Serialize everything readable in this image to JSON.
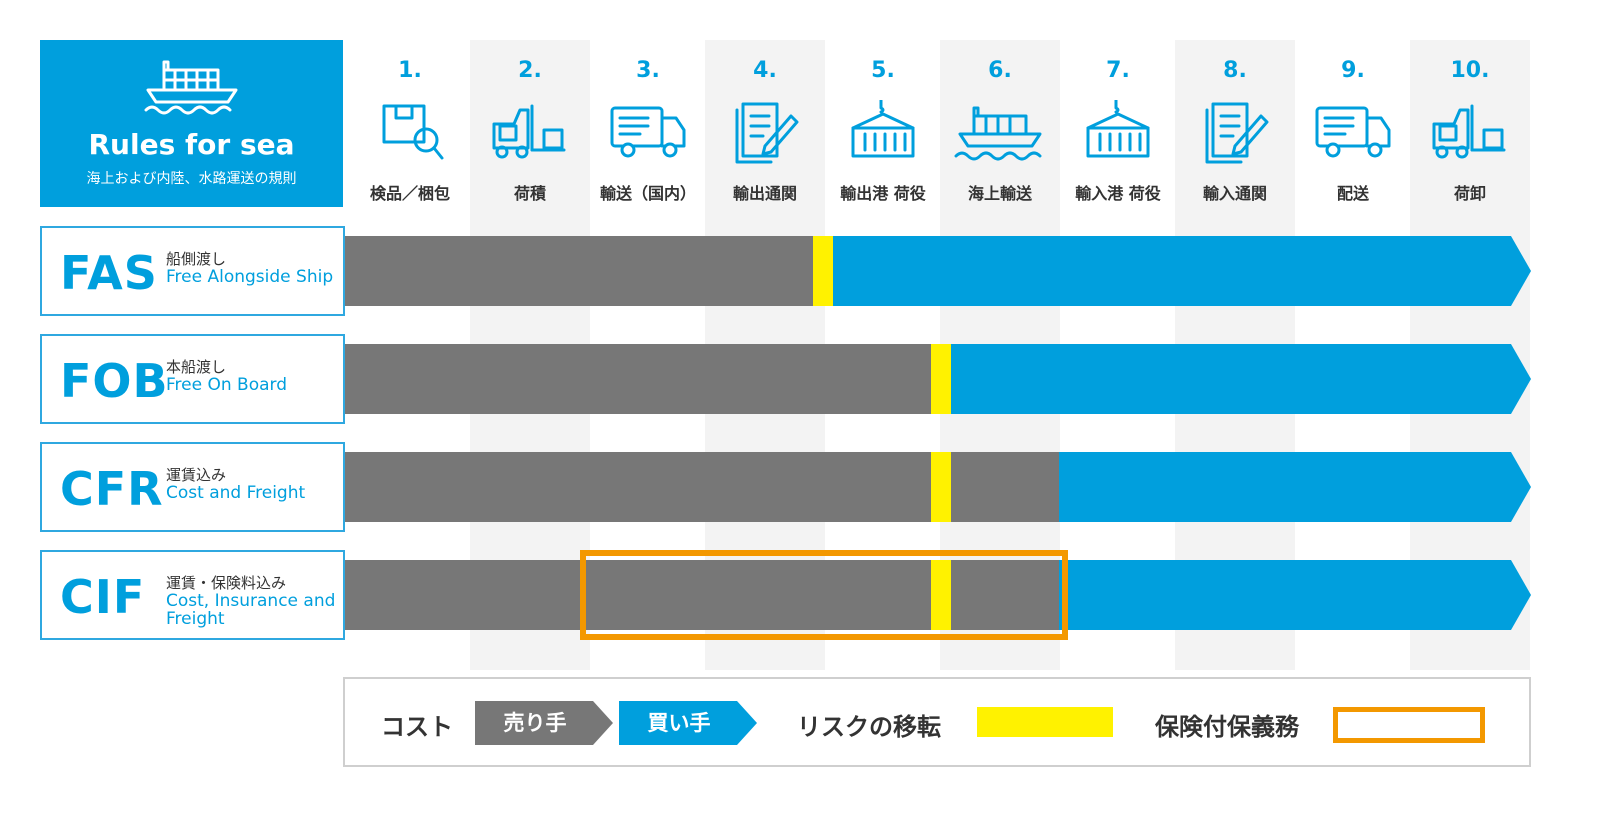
{
  "header": {
    "title": "Rules for sea",
    "subtitle": "海上および内陸、水路運送の規則",
    "icon": "ship-icon"
  },
  "steps": [
    {
      "num": "1.",
      "label": "検品／梱包",
      "icon": "inspection-box-icon"
    },
    {
      "num": "2.",
      "label": "荷積",
      "icon": "forklift-icon"
    },
    {
      "num": "3.",
      "label": "輸送（国内）",
      "icon": "truck-icon"
    },
    {
      "num": "4.",
      "label": "輸出通関",
      "icon": "document-icon"
    },
    {
      "num": "5.",
      "label": "輸出港 荷役",
      "icon": "container-crane-icon"
    },
    {
      "num": "6.",
      "label": "海上輸送",
      "icon": "ship-icon"
    },
    {
      "num": "7.",
      "label": "輸入港 荷役",
      "icon": "container-crane-icon"
    },
    {
      "num": "8.",
      "label": "輸入通関",
      "icon": "document-icon"
    },
    {
      "num": "9.",
      "label": "配送",
      "icon": "truck-icon"
    },
    {
      "num": "10.",
      "label": "荷卸",
      "icon": "forklift-icon"
    }
  ],
  "terms": [
    {
      "code": "FAS",
      "jp": "船側渡し",
      "en": "Free Alongside Ship"
    },
    {
      "code": "FOB",
      "jp": "本船渡し",
      "en": "Free On Board"
    },
    {
      "code": "CFR",
      "jp": "運賃込み",
      "en": "Cost and Freight"
    },
    {
      "code": "CIF",
      "jp": "運賃・保険料込み",
      "en": "Cost, Insurance and Freight"
    }
  ],
  "legend": {
    "cost_label": "コスト",
    "seller_label": "売り手",
    "buyer_label": "買い手",
    "risk_label": "リスクの移転",
    "insurance_label": "保険付保義務"
  },
  "colors": {
    "accent_blue": "#009fdd",
    "seller_gray": "#777777",
    "risk_yellow": "#fff200",
    "insurance_orange": "#f39800"
  }
}
